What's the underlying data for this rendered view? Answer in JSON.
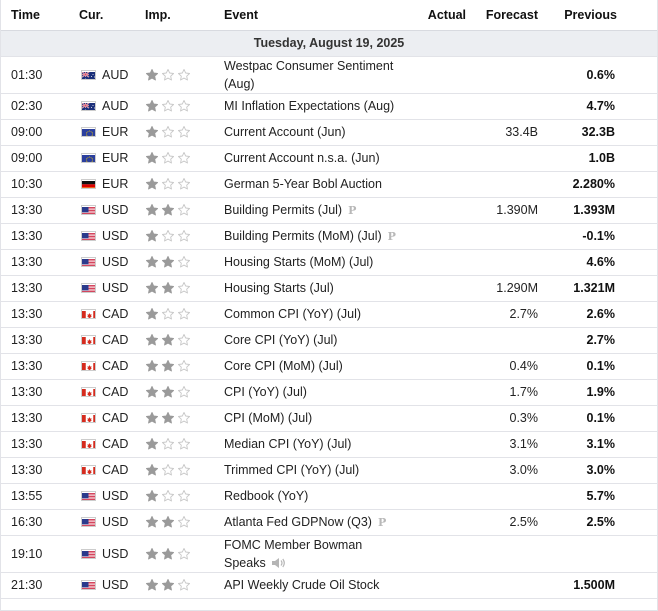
{
  "headers": {
    "time": "Time",
    "currency": "Cur.",
    "importance": "Imp.",
    "event": "Event",
    "actual": "Actual",
    "forecast": "Forecast",
    "previous": "Previous"
  },
  "date_label": "Tuesday, August 19, 2025",
  "colors": {
    "star_filled": "#9a9a9a",
    "star_empty": "#c8c8c8",
    "date_bg": "#eceef2",
    "border": "#e2e3e8"
  },
  "rows": [
    {
      "time": "01:30",
      "flag": "au",
      "currency": "AUD",
      "importance": 1,
      "event": "Westpac Consumer Sentiment (Aug)",
      "marker": "",
      "actual": "",
      "forecast": "",
      "previous": "0.6%",
      "tall": true
    },
    {
      "time": "02:30",
      "flag": "au",
      "currency": "AUD",
      "importance": 1,
      "event": "MI Inflation Expectations (Aug)",
      "marker": "",
      "actual": "",
      "forecast": "",
      "previous": "4.7%",
      "tall": false
    },
    {
      "time": "09:00",
      "flag": "eu",
      "currency": "EUR",
      "importance": 1,
      "event": "Current Account (Jun)",
      "marker": "",
      "actual": "",
      "forecast": "33.4B",
      "previous": "32.3B",
      "tall": false
    },
    {
      "time": "09:00",
      "flag": "eu",
      "currency": "EUR",
      "importance": 1,
      "event": "Current Account n.s.a. (Jun)",
      "marker": "",
      "actual": "",
      "forecast": "",
      "previous": "1.0B",
      "tall": false
    },
    {
      "time": "10:30",
      "flag": "de",
      "currency": "EUR",
      "importance": 1,
      "event": "German 5-Year Bobl Auction",
      "marker": "",
      "actual": "",
      "forecast": "",
      "previous": "2.280%",
      "tall": false
    },
    {
      "time": "13:30",
      "flag": "us",
      "currency": "USD",
      "importance": 2,
      "event": "Building Permits (Jul)",
      "marker": "prelim",
      "actual": "",
      "forecast": "1.390M",
      "previous": "1.393M",
      "tall": false
    },
    {
      "time": "13:30",
      "flag": "us",
      "currency": "USD",
      "importance": 1,
      "event": "Building Permits (MoM) (Jul)",
      "marker": "prelim",
      "actual": "",
      "forecast": "",
      "previous": "-0.1%",
      "tall": false
    },
    {
      "time": "13:30",
      "flag": "us",
      "currency": "USD",
      "importance": 2,
      "event": "Housing Starts (MoM) (Jul)",
      "marker": "",
      "actual": "",
      "forecast": "",
      "previous": "4.6%",
      "tall": false
    },
    {
      "time": "13:30",
      "flag": "us",
      "currency": "USD",
      "importance": 2,
      "event": "Housing Starts (Jul)",
      "marker": "",
      "actual": "",
      "forecast": "1.290M",
      "previous": "1.321M",
      "tall": false
    },
    {
      "time": "13:30",
      "flag": "ca",
      "currency": "CAD",
      "importance": 1,
      "event": "Common CPI (YoY) (Jul)",
      "marker": "",
      "actual": "",
      "forecast": "2.7%",
      "previous": "2.6%",
      "tall": false
    },
    {
      "time": "13:30",
      "flag": "ca",
      "currency": "CAD",
      "importance": 2,
      "event": "Core CPI (YoY) (Jul)",
      "marker": "",
      "actual": "",
      "forecast": "",
      "previous": "2.7%",
      "tall": false
    },
    {
      "time": "13:30",
      "flag": "ca",
      "currency": "CAD",
      "importance": 2,
      "event": "Core CPI (MoM) (Jul)",
      "marker": "",
      "actual": "",
      "forecast": "0.4%",
      "previous": "0.1%",
      "tall": false
    },
    {
      "time": "13:30",
      "flag": "ca",
      "currency": "CAD",
      "importance": 2,
      "event": "CPI (YoY) (Jul)",
      "marker": "",
      "actual": "",
      "forecast": "1.7%",
      "previous": "1.9%",
      "tall": false
    },
    {
      "time": "13:30",
      "flag": "ca",
      "currency": "CAD",
      "importance": 2,
      "event": "CPI (MoM) (Jul)",
      "marker": "",
      "actual": "",
      "forecast": "0.3%",
      "previous": "0.1%",
      "tall": false
    },
    {
      "time": "13:30",
      "flag": "ca",
      "currency": "CAD",
      "importance": 1,
      "event": "Median CPI (YoY) (Jul)",
      "marker": "",
      "actual": "",
      "forecast": "3.1%",
      "previous": "3.1%",
      "tall": false
    },
    {
      "time": "13:30",
      "flag": "ca",
      "currency": "CAD",
      "importance": 1,
      "event": "Trimmed CPI (YoY) (Jul)",
      "marker": "",
      "actual": "",
      "forecast": "3.0%",
      "previous": "3.0%",
      "tall": false
    },
    {
      "time": "13:55",
      "flag": "us",
      "currency": "USD",
      "importance": 1,
      "event": "Redbook (YoY)",
      "marker": "",
      "actual": "",
      "forecast": "",
      "previous": "5.7%",
      "tall": false
    },
    {
      "time": "16:30",
      "flag": "us",
      "currency": "USD",
      "importance": 2,
      "event": "Atlanta Fed GDPNow (Q3)",
      "marker": "prelim",
      "actual": "",
      "forecast": "2.5%",
      "previous": "2.5%",
      "tall": false
    },
    {
      "time": "19:10",
      "flag": "us",
      "currency": "USD",
      "importance": 2,
      "event": "FOMC Member Bowman Speaks",
      "marker": "speaker",
      "actual": "",
      "forecast": "",
      "previous": "",
      "tall": true
    },
    {
      "time": "21:30",
      "flag": "us",
      "currency": "USD",
      "importance": 2,
      "event": "API Weekly Crude Oil Stock",
      "marker": "",
      "actual": "",
      "forecast": "",
      "previous": "1.500M",
      "tall": false
    }
  ],
  "marker_glyphs": {
    "prelim": "P"
  }
}
